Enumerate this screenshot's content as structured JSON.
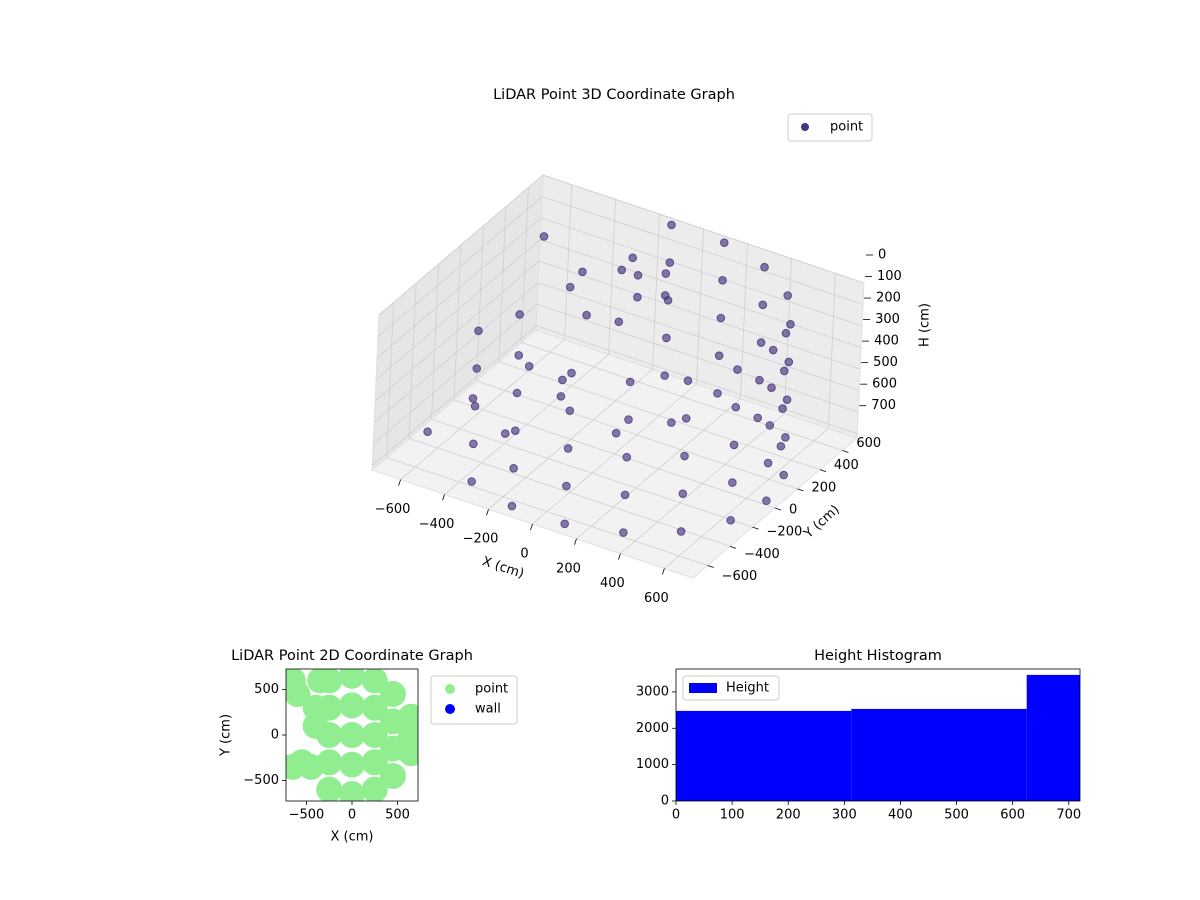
{
  "chart_data": [
    {
      "type": "scatter3d",
      "title": "LiDAR Point 3D Coordinate Graph",
      "xlabel": "X (cm)",
      "ylabel": "Y (cm)",
      "zlabel": "H (cm)",
      "xlim": [
        -730,
        730
      ],
      "ylim": [
        -730,
        730
      ],
      "zlim": [
        0,
        720
      ],
      "z_inverted": true,
      "xticks": [
        {
          "value": -600,
          "label": "−600"
        },
        {
          "value": -400,
          "label": "−400"
        },
        {
          "value": -200,
          "label": "−200"
        },
        0,
        200,
        400,
        600
      ],
      "yticks": [
        {
          "value": -600,
          "label": "−600"
        },
        {
          "value": -400,
          "label": "−400"
        },
        {
          "value": -200,
          "label": "−200"
        },
        0,
        200,
        400,
        600
      ],
      "zticks": [
        0,
        100,
        200,
        300,
        400,
        500,
        600,
        700
      ],
      "grid": true,
      "legend": "upper right",
      "series": [
        {
          "name": "point",
          "color": "#46327e",
          "x": [
            -345,
            -345,
            -345,
            -345,
            -345,
            -120,
            -120,
            -120,
            -120,
            -120,
            120,
            120,
            120,
            120,
            120,
            345,
            345,
            345,
            345,
            345,
            529,
            529,
            529,
            529,
            529,
            648,
            648,
            648,
            648,
            648,
            690,
            690,
            690,
            690,
            690,
            648,
            648,
            648,
            648,
            648,
            529,
            529,
            529,
            529,
            529,
            345,
            345,
            345,
            345,
            345,
            120,
            120,
            120,
            120,
            120,
            -120,
            -120,
            -120,
            -120,
            -120,
            -650,
            -600,
            -550,
            -500,
            -450,
            -400,
            -350,
            -300,
            -250,
            -200,
            -150,
            -100,
            -50,
            0,
            -80,
            50,
            -200,
            100,
            -300,
            200
          ],
          "y": [
            -598,
            -598,
            -598,
            -598,
            -598,
            -680,
            -680,
            -680,
            -680,
            -680,
            -680,
            -680,
            -680,
            -680,
            -680,
            -598,
            -598,
            -598,
            -598,
            -598,
            -444,
            -444,
            -444,
            -444,
            -444,
            -236,
            -236,
            -236,
            -236,
            -236,
            0,
            0,
            0,
            0,
            0,
            236,
            236,
            236,
            236,
            236,
            444,
            444,
            444,
            444,
            444,
            598,
            598,
            598,
            598,
            598,
            680,
            680,
            680,
            680,
            680,
            680,
            680,
            680,
            680,
            680,
            600,
            -500,
            200,
            -300,
            450,
            0,
            350,
            -400,
            200,
            500,
            300,
            350,
            250,
            400,
            150,
            300,
            -100,
            -200,
            100,
            100
          ],
          "z": [
            0,
            175,
            350,
            525,
            700,
            0,
            175,
            350,
            525,
            700,
            0,
            175,
            350,
            525,
            700,
            0,
            175,
            350,
            525,
            700,
            0,
            175,
            350,
            525,
            700,
            0,
            175,
            350,
            525,
            700,
            0,
            175,
            350,
            525,
            700,
            0,
            175,
            350,
            525,
            700,
            0,
            175,
            350,
            525,
            700,
            0,
            175,
            350,
            525,
            700,
            0,
            175,
            350,
            525,
            700,
            0,
            175,
            350,
            525,
            700,
            200,
            600,
            350,
            500,
            300,
            450,
            150,
            550,
            250,
            100,
            50,
            80,
            120,
            60,
            200,
            100,
            400,
            500,
            600,
            550
          ]
        }
      ]
    },
    {
      "type": "scatter",
      "title": "LiDAR Point 2D Coordinate Graph",
      "xlabel": "X (cm)",
      "ylabel": "Y (cm)",
      "xlim": [
        -725,
        725
      ],
      "ylim": [
        -725,
        725
      ],
      "xticks": [
        {
          "value": -500,
          "label": "−500"
        },
        0,
        500
      ],
      "yticks": [
        {
          "value": -500,
          "label": "−500"
        },
        0,
        500
      ],
      "legend": "outside right",
      "series": [
        {
          "name": "point",
          "color": "#90ee90",
          "x": [
            -250,
            -250,
            -250,
            -250,
            -250,
            0,
            0,
            0,
            0,
            0,
            250,
            250,
            250,
            250,
            250,
            450,
            450,
            450,
            450,
            650,
            650,
            650,
            -650,
            -600,
            -550,
            -450,
            -400,
            -350,
            -650,
            -400
          ],
          "y": [
            -600,
            -300,
            0,
            300,
            600,
            -650,
            -325,
            0,
            325,
            650,
            -600,
            -300,
            0,
            300,
            600,
            -450,
            -150,
            150,
            450,
            -200,
            0,
            200,
            600,
            450,
            -300,
            -350,
            300,
            600,
            -350,
            100
          ]
        },
        {
          "name": "wall",
          "color": "#0000ff",
          "x": [],
          "y": []
        }
      ]
    },
    {
      "type": "histogram",
      "title": "Height Histogram",
      "name": "Height",
      "color": "#0000ff",
      "bins": [
        0,
        312.5,
        625,
        720
      ],
      "counts": [
        2478,
        2532,
        3468
      ],
      "xlim": [
        0,
        720
      ],
      "ylim": [
        0,
        3630
      ],
      "xticks": [
        0,
        100,
        200,
        300,
        400,
        500,
        600,
        700
      ],
      "yticks": [
        0,
        1000,
        2000,
        3000
      ],
      "legend": "upper left"
    }
  ]
}
